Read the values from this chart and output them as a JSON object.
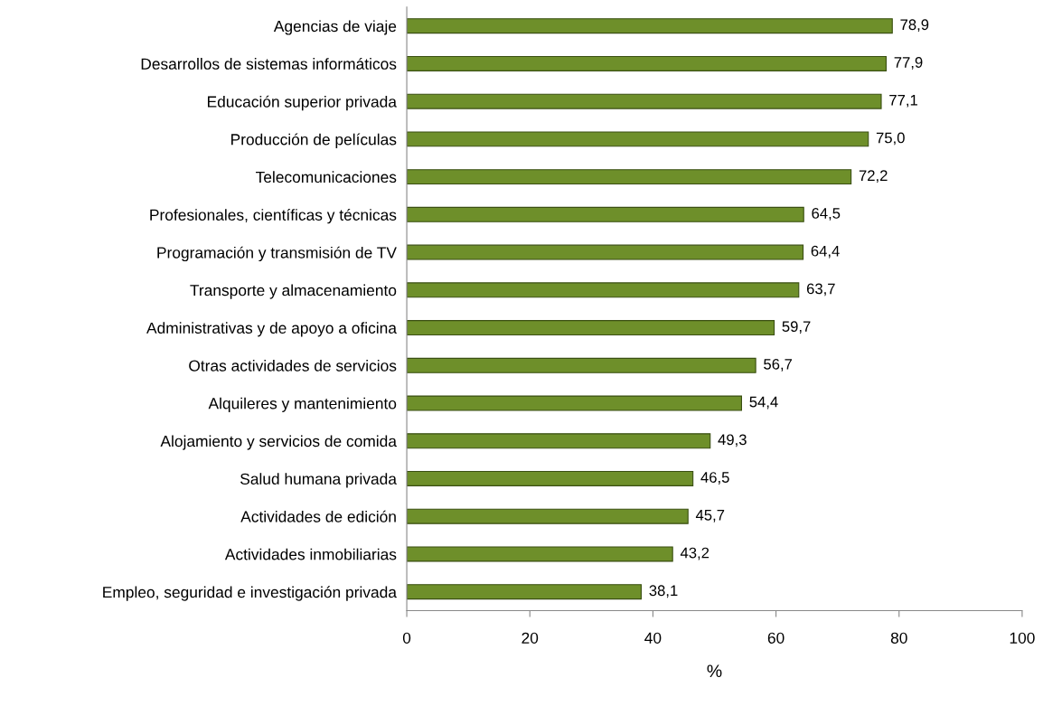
{
  "chart_data": {
    "type": "bar",
    "orientation": "horizontal",
    "xlabel": "%",
    "categories": [
      "Agencias de viaje",
      "Desarrollos de sistemas informáticos",
      "Educación superior privada",
      "Producción de películas",
      "Telecomunicaciones",
      "Profesionales, científicas y técnicas",
      "Programación y transmisión de TV",
      "Transporte y almacenamiento",
      "Administrativas y de apoyo a oficina",
      "Otras actividades de servicios",
      "Alquileres y mantenimiento",
      "Alojamiento y servicios de comida",
      "Salud humana privada",
      "Actividades de edición",
      "Actividades inmobiliarias",
      "Empleo, seguridad e investigación privada"
    ],
    "values": [
      78.9,
      77.9,
      77.1,
      75.0,
      72.2,
      64.5,
      64.4,
      63.7,
      59.7,
      56.7,
      54.4,
      49.3,
      46.5,
      45.7,
      43.2,
      38.1
    ],
    "value_labels": [
      "78,9",
      "77,9",
      "77,1",
      "75,0",
      "72,2",
      "64,5",
      "64,4",
      "63,7",
      "59,7",
      "56,7",
      "54,4",
      "49,3",
      "46,5",
      "45,7",
      "43,2",
      "38,1"
    ],
    "color": "#6e8f2a",
    "xlim": [
      0,
      100
    ],
    "xticks": [
      0,
      20,
      40,
      60,
      80,
      100
    ],
    "grid": false,
    "legend": false
  }
}
